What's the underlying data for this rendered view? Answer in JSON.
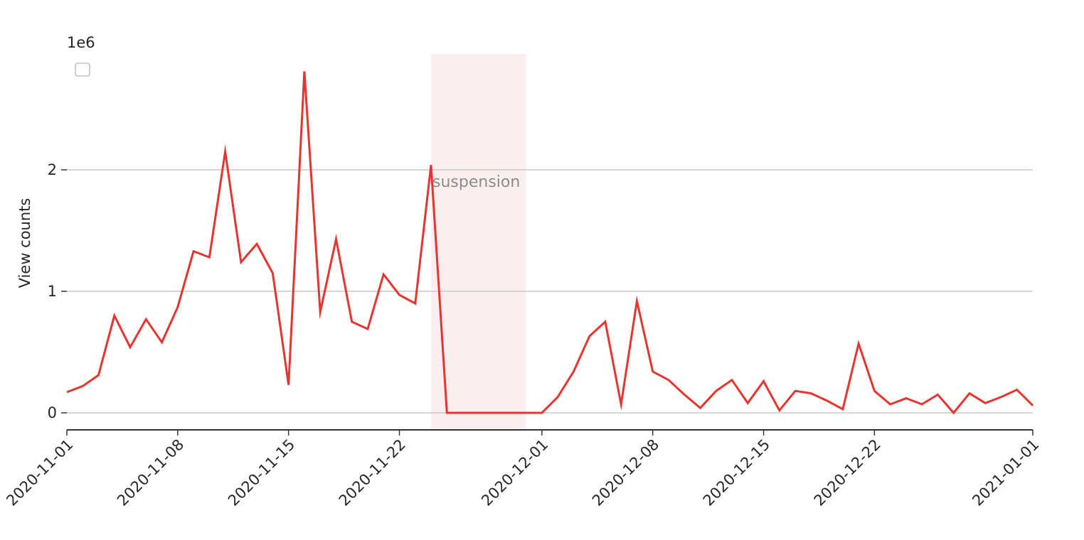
{
  "chart_data": {
    "type": "line",
    "ylabel": "View counts",
    "y_offset_label": "1e6",
    "y_unit_multiplier": 1000000,
    "ylim": [
      -0.14,
      3.0
    ],
    "xlim": [
      "2020-11-01",
      "2021-01-01"
    ],
    "y_ticks": [
      0,
      1,
      2
    ],
    "x_ticks": [
      "2020-11-01",
      "2020-11-08",
      "2020-11-15",
      "2020-11-22",
      "2020-12-01",
      "2020-12-08",
      "2020-12-15",
      "2020-12-22",
      "2021-01-01"
    ],
    "grid": "horizontal",
    "legend": "top-left, empty",
    "line_color": "#e8342f",
    "shaded_region": {
      "label": "suspension",
      "start": "2020-11-24",
      "end": "2020-11-30",
      "color": "#fbeeee"
    },
    "series": [
      {
        "x": [
          "2020-11-01",
          "2020-11-02",
          "2020-11-03",
          "2020-11-04",
          "2020-11-05",
          "2020-11-06",
          "2020-11-07",
          "2020-11-08",
          "2020-11-09",
          "2020-11-10",
          "2020-11-11",
          "2020-11-12",
          "2020-11-13",
          "2020-11-14",
          "2020-11-15",
          "2020-11-16",
          "2020-11-17",
          "2020-11-18",
          "2020-11-19",
          "2020-11-20",
          "2020-11-21",
          "2020-11-22",
          "2020-11-23",
          "2020-11-24",
          "2020-11-25",
          "2020-11-26",
          "2020-11-27",
          "2020-11-28",
          "2020-11-29",
          "2020-11-30",
          "2020-12-01",
          "2020-12-02",
          "2020-12-03",
          "2020-12-04",
          "2020-12-05",
          "2020-12-06",
          "2020-12-07",
          "2020-12-08",
          "2020-12-09",
          "2020-12-10",
          "2020-12-11",
          "2020-12-12",
          "2020-12-13",
          "2020-12-14",
          "2020-12-15",
          "2020-12-16",
          "2020-12-17",
          "2020-12-18",
          "2020-12-19",
          "2020-12-20",
          "2020-12-21",
          "2020-12-22",
          "2020-12-23",
          "2020-12-24",
          "2020-12-25",
          "2020-12-26",
          "2020-12-27",
          "2020-12-28",
          "2020-12-29",
          "2020-12-30",
          "2020-12-31",
          "2021-01-01"
        ],
        "y": [
          0.17,
          0.22,
          0.31,
          0.8,
          0.54,
          0.77,
          0.58,
          0.87,
          1.33,
          1.28,
          2.15,
          1.24,
          1.39,
          1.15,
          0.23,
          2.81,
          0.83,
          1.43,
          0.75,
          0.69,
          1.14,
          0.97,
          0.9,
          2.04,
          0.0,
          0.0,
          0.0,
          0.0,
          0.0,
          0.0,
          0.0,
          0.13,
          0.34,
          0.63,
          0.75,
          0.07,
          0.92,
          0.34,
          0.27,
          0.15,
          0.04,
          0.18,
          0.27,
          0.08,
          0.26,
          0.02,
          0.18,
          0.16,
          0.1,
          0.03,
          0.57,
          0.18,
          0.07,
          0.12,
          0.07,
          0.15,
          0.0,
          0.16,
          0.08,
          0.13,
          0.19,
          0.06
        ]
      }
    ]
  }
}
